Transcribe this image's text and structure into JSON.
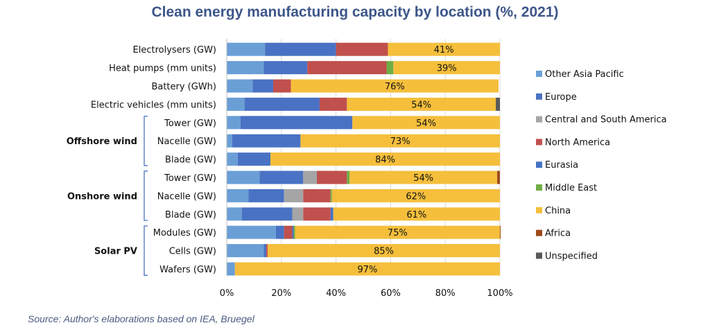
{
  "chart_data": {
    "type": "bar",
    "orientation": "horizontal",
    "stacked": true,
    "title": "Clean energy manufacturing capacity by location (%, 2021)",
    "source": "Source: Author's elaborations based on IEA, Bruegel",
    "xlabel": "",
    "ylabel": "",
    "xlim": [
      0,
      100
    ],
    "x_ticks": [
      "0%",
      "20%",
      "40%",
      "60%",
      "80%",
      "100%"
    ],
    "grid": true,
    "legend_position": "right",
    "categories": [
      "Electrolysers (GW)",
      "Heat pumps (mm units)",
      "Battery (GWh)",
      "Electric vehicles (mm units)",
      "Tower (GW)",
      "Nacelle (GW)",
      "Blade (GW)",
      "Tower (GW)",
      "Nacelle (GW)",
      "Blade (GW)",
      "Modules (GW)",
      "Cells (GW)",
      "Wafers (GW)"
    ],
    "groups": [
      {
        "label": "Offshore wind",
        "rows": [
          4,
          6
        ]
      },
      {
        "label": "Onshore wind",
        "rows": [
          7,
          9
        ]
      },
      {
        "label": "Solar PV",
        "rows": [
          10,
          12
        ]
      }
    ],
    "series": [
      {
        "name": "Other Asia Pacific",
        "color": "#6a9fd6",
        "values": [
          14,
          13.5,
          9.5,
          6.5,
          5,
          2,
          4,
          12,
          8,
          5.5,
          18,
          13.5,
          3
        ]
      },
      {
        "name": "Europe",
        "color": "#4a72c4",
        "values": [
          26,
          16,
          7.5,
          27.5,
          41,
          25,
          12,
          16,
          13,
          18.5,
          3,
          1,
          0
        ]
      },
      {
        "name": "Central and South America",
        "color": "#a5a5a5",
        "values": [
          0,
          0,
          0,
          0,
          0,
          0,
          0,
          5,
          7,
          4,
          0,
          0,
          0
        ]
      },
      {
        "name": "North America",
        "color": "#c0504d",
        "values": [
          19,
          29,
          6.5,
          10,
          0,
          0,
          0,
          11,
          10,
          10,
          3,
          0.5,
          0
        ]
      },
      {
        "name": "Eurasia",
        "color": "#4472c4",
        "values": [
          0,
          0,
          0,
          0,
          0,
          0,
          0,
          0,
          0,
          1,
          0.5,
          0,
          0
        ]
      },
      {
        "name": "Middle East",
        "color": "#70ad47",
        "values": [
          0,
          2.5,
          0,
          0,
          0,
          0,
          0,
          1,
          0.5,
          0,
          0.5,
          0,
          0
        ]
      },
      {
        "name": "China",
        "color": "#f5bf3c",
        "values": [
          41,
          39,
          76,
          54.5,
          54,
          73,
          84,
          54,
          61.5,
          61,
          75,
          85,
          97
        ]
      },
      {
        "name": "Africa",
        "color": "#9e4a1c",
        "values": [
          0,
          0,
          0,
          0,
          0,
          0,
          0,
          1,
          0,
          0,
          0.5,
          0,
          0
        ]
      },
      {
        "name": "Unspecified",
        "color": "#595959",
        "values": [
          0,
          0,
          0,
          1.5,
          0,
          0,
          0,
          0,
          0,
          0,
          0,
          0,
          0
        ]
      }
    ],
    "data_labels": [
      "41%",
      "39%",
      "76%",
      "54%",
      "54%",
      "73%",
      "84%",
      "54%",
      "62%",
      "61%",
      "75%",
      "85%",
      "97%"
    ],
    "data_label_series": "China"
  }
}
